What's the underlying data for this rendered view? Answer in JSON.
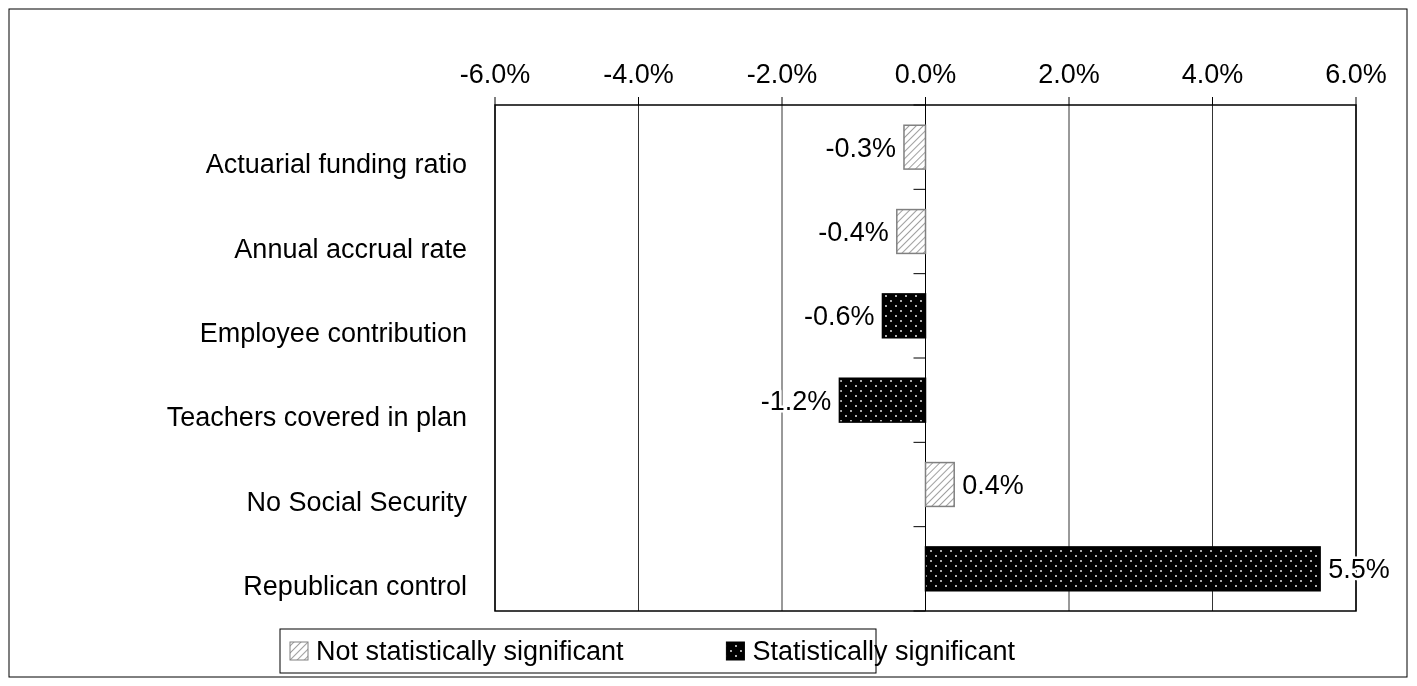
{
  "chart_data": {
    "type": "bar",
    "orientation": "horizontal",
    "stacked": true,
    "categories": [
      "Actuarial funding ratio",
      "Annual accrual rate",
      "Employee contribution",
      "Teachers covered in plan",
      "No Social Security",
      "Republican control"
    ],
    "series": [
      {
        "name": "Not statistically significant",
        "color": "#808080",
        "values": [
          -0.3,
          -0.4,
          null,
          null,
          0.4,
          null
        ],
        "value_labels": [
          "-0.3%",
          "-0.4%",
          null,
          null,
          "0.4%",
          null
        ]
      },
      {
        "name": "Statistically significant",
        "color": "#000000",
        "values": [
          null,
          null,
          -0.6,
          -1.2,
          null,
          5.5
        ],
        "value_labels": [
          null,
          null,
          "-0.6%",
          "-1.2%",
          null,
          "5.5%"
        ]
      }
    ],
    "xlim": [
      -6,
      6
    ],
    "xticks": [
      {
        "value": -6,
        "label": "-6.0%"
      },
      {
        "value": -4,
        "label": "-4.0%"
      },
      {
        "value": -2,
        "label": "-2.0%"
      },
      {
        "value": 0,
        "label": "0.0%"
      },
      {
        "value": 2,
        "label": "2.0%"
      },
      {
        "value": 4,
        "label": "4.0%"
      },
      {
        "value": 6,
        "label": "6.0%"
      }
    ],
    "grid": "x",
    "legend": "bottom"
  }
}
